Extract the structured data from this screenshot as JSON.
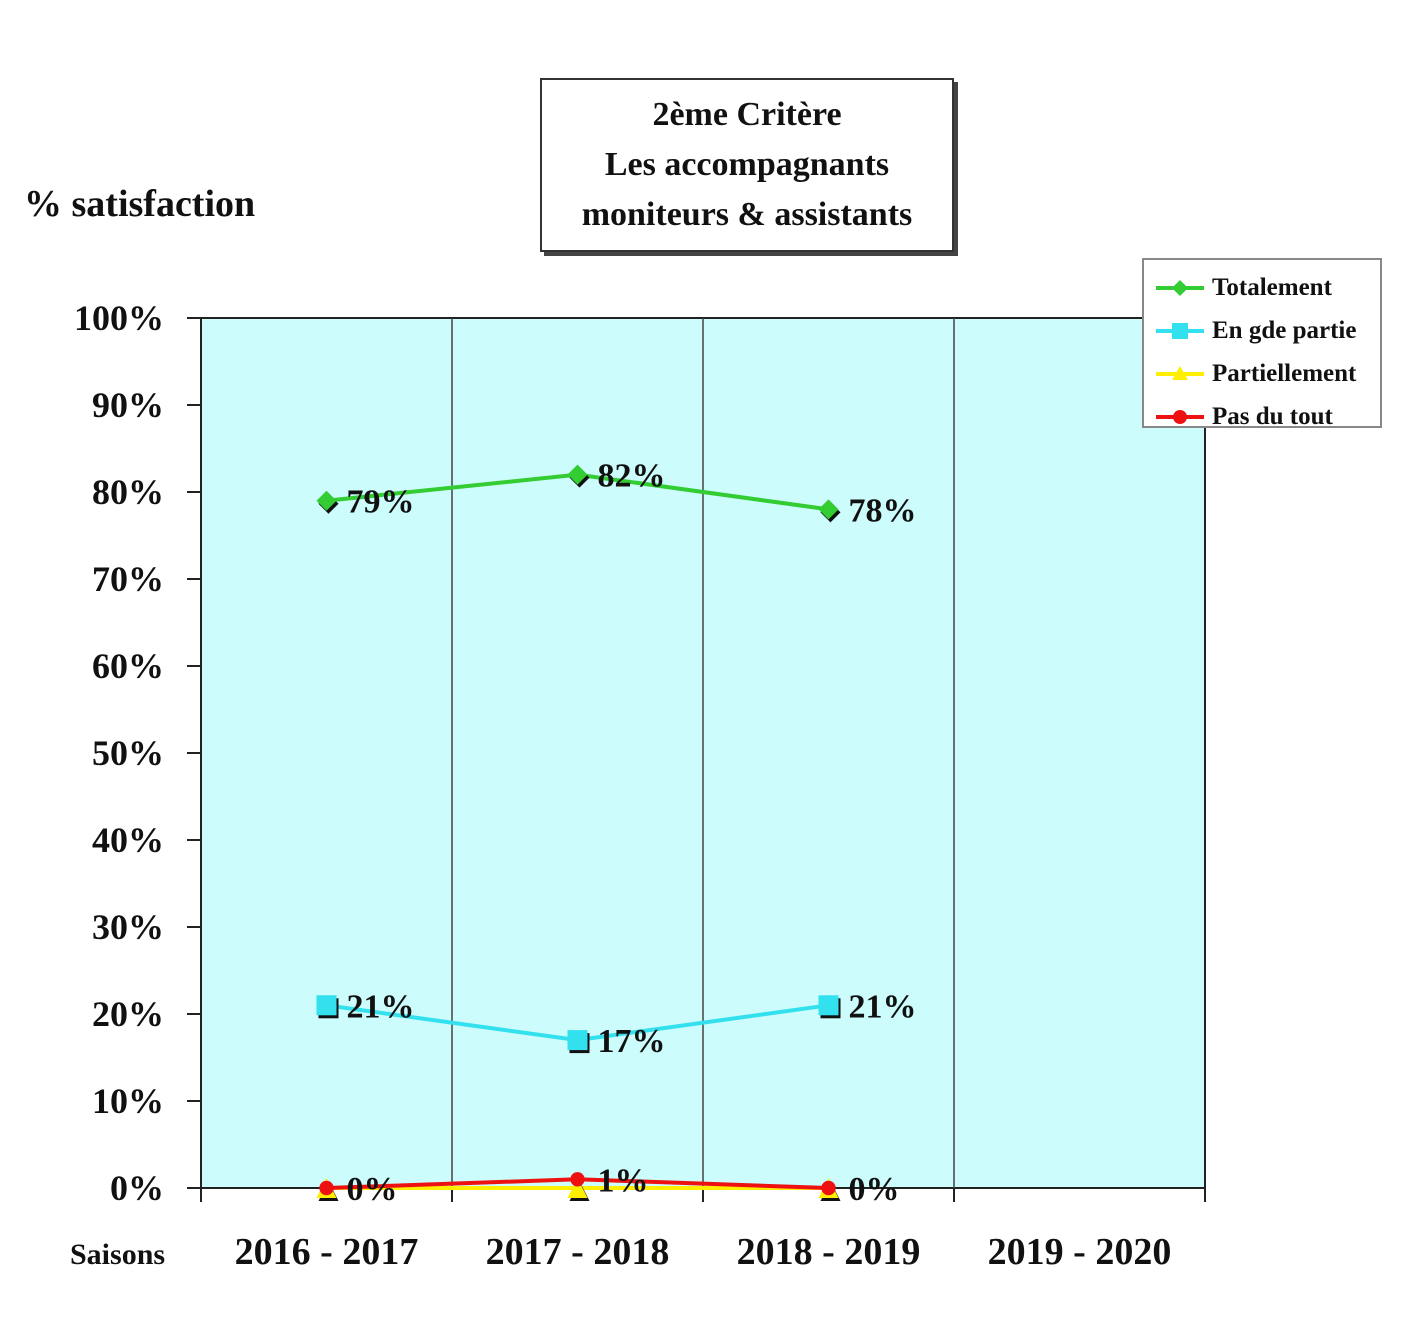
{
  "title_lines": [
    "2ème  Critère",
    "Les accompagnants",
    "moniteurs & assistants"
  ],
  "ylabel": "% satisfaction",
  "xlabel": "Saisons",
  "chart_data": {
    "type": "line",
    "title": "2ème  Critère Les accompagnants moniteurs & assistants",
    "ylabel": "% satisfaction",
    "xlabel": "Saisons",
    "categories": [
      "2016 - 2017",
      "2017 - 2018",
      "2018 - 2019",
      "2019 - 2020"
    ],
    "ylim": [
      0,
      100
    ],
    "yticks": [
      "0%",
      "10%",
      "20%",
      "30%",
      "40%",
      "50%",
      "60%",
      "70%",
      "80%",
      "90%",
      "100%"
    ],
    "grid": "vertical separators between categories",
    "legend_position": "top-right",
    "plot_background": "#ccfcfc",
    "series": [
      {
        "name": "Totalement",
        "color": "#33cc33",
        "marker": "diamond",
        "values": [
          79,
          82,
          78,
          null
        ],
        "labels": [
          "79%",
          "82%",
          "78%",
          null
        ]
      },
      {
        "name": "En gde partie",
        "color": "#33e0ee",
        "marker": "square",
        "values": [
          21,
          17,
          21,
          null
        ],
        "labels": [
          "21%",
          "17%",
          "21%",
          null
        ]
      },
      {
        "name": "Partiellement",
        "color": "#ffee00",
        "marker": "triangle",
        "values": [
          0,
          0,
          0,
          null
        ],
        "labels": [
          null,
          null,
          null,
          null
        ]
      },
      {
        "name": "Pas du tout",
        "color": "#ee1111",
        "marker": "circle",
        "values": [
          0,
          1,
          0,
          null
        ],
        "labels": [
          "0%",
          "1%",
          "0%",
          null
        ]
      }
    ]
  }
}
